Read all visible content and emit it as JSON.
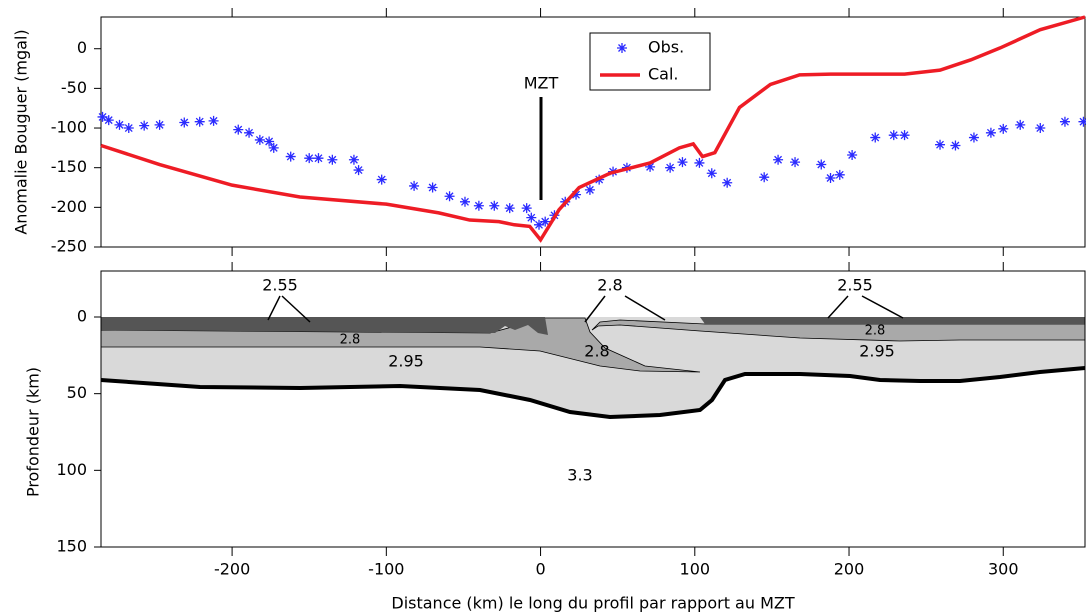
{
  "chart_data": [
    {
      "type": "scatter_line",
      "ylabel": "Anomalie Bouguer (mgal)",
      "annotation": "MZT",
      "legend": "upper center",
      "xlim": [
        -285,
        353
      ],
      "xticks": [
        -200,
        -100,
        0,
        100,
        200,
        300
      ],
      "ylim": [
        -250,
        40
      ],
      "yticks": [
        -250,
        -200,
        -150,
        -100,
        -50,
        0
      ],
      "series": [
        {
          "name": "Obs.",
          "color": "#2b2bff",
          "style": "markers",
          "x": [
            -284,
            -280,
            -273,
            -267,
            -257,
            -247,
            -231,
            -221,
            -212,
            -196,
            -189,
            -182,
            -176,
            -173,
            -162,
            -150,
            -144,
            -135,
            -121,
            -118,
            -103,
            -82,
            -70,
            -59,
            -49,
            -40,
            -30,
            -20,
            -9,
            -6,
            -1,
            3,
            9,
            16,
            23,
            32,
            38,
            47,
            56,
            71,
            84,
            92,
            103,
            111,
            121,
            145,
            154,
            165,
            182,
            188,
            194,
            202,
            217,
            229,
            236,
            259,
            269,
            281,
            292,
            300,
            311,
            324,
            340,
            352
          ],
          "values": [
            -86,
            -90,
            -96,
            -100,
            -97,
            -96,
            -93,
            -92,
            -91,
            -102,
            -106,
            -115,
            -117,
            -125,
            -136,
            -138,
            -138,
            -140,
            -140,
            -153,
            -165,
            -173,
            -175,
            -186,
            -193,
            -198,
            -198,
            -201,
            -201,
            -213,
            -222,
            -218,
            -210,
            -193,
            -184,
            -178,
            -165,
            -155,
            -150,
            -149,
            -150,
            -143,
            -144,
            -157,
            -169,
            -162,
            -140,
            -143,
            -146,
            -163,
            -159,
            -134,
            -112,
            -109,
            -109,
            -121,
            -122,
            -112,
            -106,
            -101,
            -96,
            -100,
            -92,
            -92
          ]
        },
        {
          "name": "Cal.",
          "color": "#ee1c25",
          "style": "line",
          "x": [
            -285,
            -247,
            -200,
            -156,
            -100,
            -66,
            -46,
            -27,
            -17,
            -7,
            0,
            12,
            25,
            45,
            71,
            90,
            99,
            105,
            113,
            129,
            149,
            168,
            188,
            214,
            236,
            259,
            279,
            298,
            324,
            353
          ],
          "values": [
            -122,
            -146,
            -172,
            -187,
            -196,
            -207,
            -216,
            -218,
            -222,
            -224,
            -241,
            -203,
            -175,
            -157,
            -144,
            -125,
            -120,
            -136,
            -131,
            -74,
            -45,
            -33,
            -32,
            -32,
            -32,
            -27,
            -14,
            1,
            24,
            40
          ]
        }
      ]
    },
    {
      "type": "section",
      "xlabel": "Distance (km) le long du profil par rapport au MZT",
      "ylabel": "Profondeur (km)",
      "xlim": [
        -285,
        353
      ],
      "xticks": [
        -200,
        -100,
        0,
        100,
        200,
        300
      ],
      "ylim": [
        150,
        -30
      ],
      "yticks": [
        0,
        50,
        100,
        150
      ],
      "annotations": [
        "2.55",
        "2.8",
        "2.55",
        "2.8",
        "2.95",
        "2.8",
        "2.8",
        "2.95",
        "3.3"
      ]
    }
  ]
}
